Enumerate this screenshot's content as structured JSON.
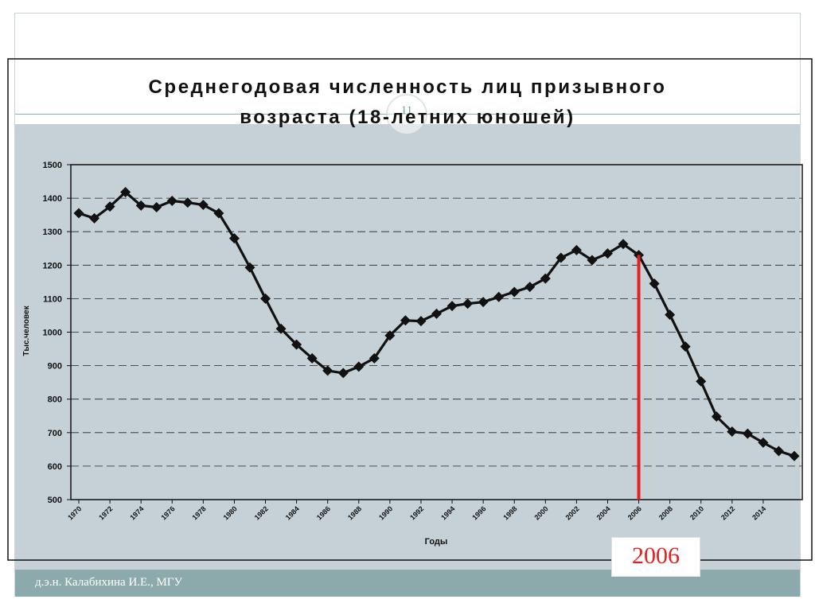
{
  "slide": {
    "footer": "д.э.н. Калабихина И.Е., МГУ",
    "slide_number": "11",
    "highlight_label": "2006"
  },
  "colors": {
    "highlight": "#e62020",
    "band": "#c5d1d6",
    "footer_bar": "#8caaac"
  },
  "chart_data": {
    "type": "line",
    "title_lines": [
      "Среднегодовая численность лиц призывного",
      "возраста (18-летних юношей)"
    ],
    "xlabel": "Годы",
    "ylabel": "Тыс.человек",
    "xlim": [
      1970,
      2016
    ],
    "ylim": [
      500,
      1500
    ],
    "x_ticks": [
      "1970",
      "1972",
      "1974",
      "1976",
      "1978",
      "1980",
      "1982",
      "1984",
      "1986",
      "1988",
      "1990",
      "1992",
      "1994",
      "1996",
      "1998",
      "2000",
      "2002",
      "2004",
      "2006",
      "2008",
      "2010",
      "2012",
      "2014"
    ],
    "y_ticks": [
      "500",
      "600",
      "700",
      "800",
      "900",
      "1000",
      "1100",
      "1200",
      "1300",
      "1400",
      "1500"
    ],
    "grid": "horizontal dashed",
    "highlight_x": 2006,
    "series": [
      {
        "x": [
          1970,
          1971,
          1972,
          1973,
          1974,
          1975,
          1976,
          1977,
          1978,
          1979,
          1980,
          1981,
          1982,
          1983,
          1984,
          1985,
          1986,
          1987,
          1988,
          1989,
          1990,
          1991,
          1992,
          1993,
          1994,
          1995,
          1996,
          1997,
          1998,
          1999,
          2000,
          2001,
          2002,
          2003,
          2004,
          2005,
          2006,
          2007,
          2008,
          2009,
          2010,
          2011,
          2012,
          2013,
          2014,
          2015,
          2016
        ],
        "values": [
          1355,
          1340,
          1375,
          1418,
          1378,
          1373,
          1392,
          1387,
          1380,
          1355,
          1280,
          1193,
          1100,
          1010,
          963,
          922,
          885,
          878,
          897,
          922,
          990,
          1035,
          1033,
          1055,
          1078,
          1085,
          1090,
          1105,
          1120,
          1135,
          1160,
          1222,
          1245,
          1215,
          1235,
          1263,
          1230,
          1145,
          1052,
          957,
          853,
          748,
          703,
          697,
          670,
          645,
          630
        ]
      }
    ]
  }
}
